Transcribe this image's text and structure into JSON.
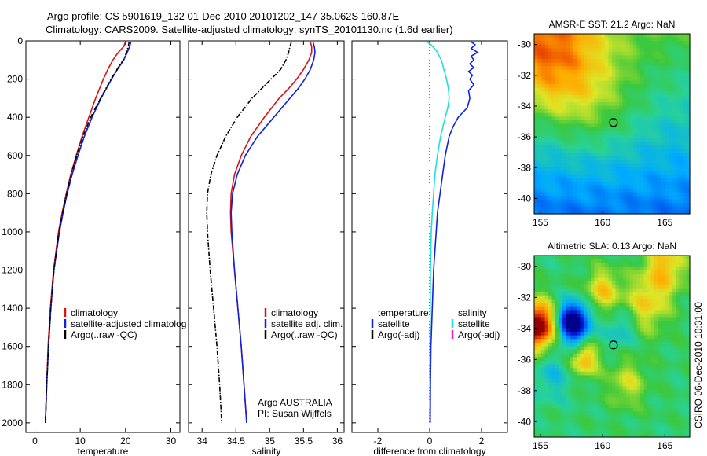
{
  "title": {
    "line1": "Argo profile: CS 5901619_132 01-Dec-2010 20101202_147 35.062S 160.87E",
    "line2": "Climatology: CARS2009. Satellite-adjusted climatology: synTS_20101130.nc (1.6d earlier)"
  },
  "side_label": "CSIRO 06-Dec-2010 10:31:00",
  "colors": {
    "climatology": "#dd1111",
    "satellite": "#1122dd",
    "argo": "#000000",
    "salinity_satellite": "#22dddd",
    "salinity_argo": "#dd22dd"
  },
  "chart_data": [
    {
      "id": "temperature",
      "type": "line",
      "xlabel": "temperature",
      "ylabel": "",
      "xlim": [
        -2,
        32
      ],
      "ylim": [
        2050,
        0
      ],
      "xticks": [
        0,
        10,
        20,
        30
      ],
      "yticks": [
        0,
        200,
        400,
        600,
        800,
        1000,
        1200,
        1400,
        1600,
        1800,
        2000
      ],
      "ytick_labels": [
        "0",
        "200",
        "400",
        "600",
        "800",
        "1000",
        "1200",
        "1400",
        "1600",
        "1800",
        "2000"
      ],
      "legend": [
        "climatology",
        "satellite-adjusted climatolog",
        "Argo(..raw -QC)"
      ],
      "legend_position": "lower-right",
      "series": [
        {
          "name": "climatology",
          "color": "#dd1111",
          "style": "solid",
          "depth": [
            5,
            30,
            60,
            100,
            150,
            200,
            300,
            400,
            500,
            600,
            700,
            800,
            900,
            1000,
            1200,
            1400,
            1600,
            1800,
            2000
          ],
          "values": [
            20.0,
            19.6,
            18.4,
            17.2,
            16.1,
            15.1,
            13.4,
            11.9,
            10.4,
            9.1,
            7.9,
            6.9,
            6.0,
            5.2,
            4.1,
            3.4,
            2.9,
            2.6,
            2.3
          ]
        },
        {
          "name": "satellite-adjusted climatolog",
          "color": "#1122dd",
          "style": "solid",
          "depth": [
            5,
            30,
            60,
            100,
            150,
            200,
            300,
            400,
            500,
            600,
            700,
            800,
            900,
            1000,
            1200,
            1400,
            1600,
            1800,
            2000
          ],
          "values": [
            21.2,
            20.9,
            20.4,
            19.6,
            18.2,
            16.9,
            14.6,
            12.6,
            10.9,
            9.5,
            8.2,
            7.1,
            6.2,
            5.4,
            4.2,
            3.5,
            3.0,
            2.6,
            2.3
          ]
        },
        {
          "name": "Argo(..raw -QC)",
          "color": "#000000",
          "style": "dashdot",
          "depth": [
            5,
            30,
            60,
            100,
            150,
            200,
            300,
            400,
            500,
            600,
            700,
            800,
            900,
            1000,
            1200,
            1400,
            1600,
            1800,
            2000
          ],
          "values": [
            20.8,
            20.6,
            20.2,
            19.5,
            18.1,
            16.8,
            14.5,
            12.3,
            10.6,
            9.2,
            8.0,
            7.0,
            6.1,
            5.3,
            4.2,
            3.5,
            3.0,
            2.6,
            2.3
          ]
        }
      ]
    },
    {
      "id": "salinity",
      "type": "line",
      "xlabel": "salinity",
      "ylabel": "",
      "xlim": [
        33.8,
        36.1
      ],
      "ylim": [
        2050,
        0
      ],
      "xticks": [
        34,
        34.5,
        35,
        35.5,
        36
      ],
      "yticks": [
        0,
        200,
        400,
        600,
        800,
        1000,
        1200,
        1400,
        1600,
        1800,
        2000
      ],
      "legend": [
        "climatology",
        "satellite adj. clim.",
        "Argo(..raw -QC)"
      ],
      "legend_position": "lower-right",
      "annotation": [
        "Argo AUSTRALIA",
        "PI: Susan Wijffels"
      ],
      "series": [
        {
          "name": "climatology",
          "color": "#dd1111",
          "style": "solid",
          "depth": [
            5,
            30,
            60,
            100,
            150,
            200,
            250,
            300,
            400,
            500,
            600,
            700,
            800,
            900,
            1000,
            1200,
            1400,
            1600,
            1800,
            2000
          ],
          "values": [
            35.6,
            35.62,
            35.62,
            35.58,
            35.5,
            35.4,
            35.28,
            35.14,
            34.92,
            34.72,
            34.58,
            34.48,
            34.43,
            34.42,
            34.43,
            34.48,
            34.53,
            34.58,
            34.62,
            34.66
          ]
        },
        {
          "name": "satellite adj. clim.",
          "color": "#1122dd",
          "style": "solid",
          "depth": [
            5,
            30,
            60,
            100,
            150,
            200,
            250,
            300,
            400,
            500,
            600,
            700,
            800,
            900,
            1000,
            1200,
            1400,
            1600,
            1800,
            2000
          ],
          "values": [
            35.64,
            35.66,
            35.67,
            35.65,
            35.6,
            35.52,
            35.42,
            35.3,
            35.06,
            34.82,
            34.64,
            34.52,
            34.45,
            34.43,
            34.44,
            34.48,
            34.53,
            34.58,
            34.62,
            34.66
          ]
        },
        {
          "name": "Argo(..raw -QC)",
          "color": "#000000",
          "style": "dashdot",
          "depth": [
            5,
            30,
            60,
            100,
            150,
            200,
            250,
            300,
            400,
            500,
            600,
            700,
            800,
            900,
            1000,
            1200,
            1400,
            1600,
            1800,
            2000
          ],
          "values": [
            35.32,
            35.3,
            35.28,
            35.24,
            35.16,
            35.02,
            34.88,
            34.74,
            34.52,
            34.35,
            34.22,
            34.13,
            34.08,
            34.07,
            34.08,
            34.12,
            34.17,
            34.22,
            34.26,
            34.29
          ]
        }
      ]
    },
    {
      "id": "difference",
      "type": "line",
      "xlabel": "difference from climatology",
      "ylabel": "",
      "xlim": [
        -3,
        3
      ],
      "ylim": [
        2050,
        0
      ],
      "xticks": [
        -2,
        0,
        2
      ],
      "yticks": [
        0,
        200,
        400,
        600,
        800,
        1000,
        1200,
        1400,
        1600,
        1800,
        2000
      ],
      "legend_left_header": "temperature",
      "legend_left": [
        "satellite",
        "Argo(-adj)"
      ],
      "legend_right_header": "salinity",
      "legend_right": [
        "satellite",
        "Argo(-adj)"
      ],
      "legend_position": "lower-center",
      "series": [
        {
          "name": "temperature satellite",
          "color": "#1122dd",
          "style": "solid",
          "depth": [
            5,
            20,
            40,
            60,
            80,
            100,
            120,
            140,
            160,
            180,
            200,
            230,
            260,
            300,
            350,
            400,
            450,
            500,
            600,
            700,
            800,
            900,
            1000,
            1200,
            1400,
            1600,
            1800,
            2000
          ],
          "values": [
            1.6,
            1.75,
            1.6,
            1.85,
            1.6,
            1.7,
            1.55,
            1.7,
            1.5,
            1.65,
            1.55,
            1.7,
            1.5,
            1.55,
            1.45,
            1.1,
            0.9,
            0.75,
            0.6,
            0.5,
            0.4,
            0.3,
            0.25,
            0.15,
            0.1,
            0.05,
            0.03,
            0.02
          ]
        },
        {
          "name": "salinity satellite",
          "color": "#22dddd",
          "style": "solid",
          "depth": [
            5,
            20,
            50,
            100,
            150,
            200,
            250,
            300,
            350,
            400,
            500,
            600,
            700,
            800,
            900,
            1000,
            1200,
            1400,
            1600,
            1800,
            2000
          ],
          "values": [
            -0.1,
            0.05,
            0.25,
            0.45,
            0.55,
            0.65,
            0.72,
            0.75,
            0.7,
            0.6,
            0.42,
            0.3,
            0.2,
            0.15,
            0.1,
            0.06,
            0.03,
            0.02,
            0.01,
            0.01,
            0.0
          ]
        },
        {
          "name": "zero reference",
          "color": "#000000",
          "style": "dotted",
          "depth": [
            0,
            2050
          ],
          "values": [
            0,
            0
          ]
        }
      ]
    },
    {
      "id": "amsr-sst",
      "type": "heatmap",
      "title": "AMSR-E SST: 21.2 Argo: NaN",
      "xlim": [
        154.5,
        167
      ],
      "ylim": [
        -41,
        -29.3
      ],
      "xticks": [
        155,
        160,
        165
      ],
      "yticks": [
        -30,
        -32,
        -34,
        -36,
        -38,
        -40
      ],
      "marker": {
        "lon": 160.87,
        "lat": -35.062
      },
      "colormap": "jet",
      "field_range": [
        15,
        24
      ],
      "field_blobs": [
        {
          "lon": 155.0,
          "lat": -30.5,
          "r": 2.8,
          "amp": 2.2
        },
        {
          "lon": 157.5,
          "lat": -31.5,
          "r": 3.5,
          "amp": 1.2
        },
        {
          "lon": 160.5,
          "lat": -34.5,
          "r": 2.5,
          "amp": 0.6
        },
        {
          "lon": 158.0,
          "lat": -33.5,
          "r": 2.0,
          "amp": 0.5
        }
      ]
    },
    {
      "id": "altimetric-sla",
      "type": "heatmap",
      "title": "Altimetric SLA: 0.13 Argo: NaN",
      "xlim": [
        154.5,
        167
      ],
      "ylim": [
        -41,
        -29.3
      ],
      "xticks": [
        155,
        160,
        165
      ],
      "yticks": [
        -30,
        -32,
        -34,
        -36,
        -38,
        -40
      ],
      "marker": {
        "lon": 160.87,
        "lat": -35.062
      },
      "colormap": "jet",
      "field_range": [
        -0.6,
        0.6
      ],
      "field_blobs": [
        {
          "lon": 154.8,
          "lat": -33.8,
          "r": 1.1,
          "amp": 0.7
        },
        {
          "lon": 157.6,
          "lat": -33.6,
          "r": 0.9,
          "amp": -0.75
        },
        {
          "lon": 158.5,
          "lat": -36.0,
          "r": 0.8,
          "amp": 0.35
        },
        {
          "lon": 160.0,
          "lat": -31.5,
          "r": 1.0,
          "amp": 0.28
        },
        {
          "lon": 163.5,
          "lat": -32.5,
          "r": 1.3,
          "amp": 0.25
        },
        {
          "lon": 165.0,
          "lat": -30.0,
          "r": 1.2,
          "amp": 0.3
        },
        {
          "lon": 162.0,
          "lat": -37.5,
          "r": 1.1,
          "amp": 0.2
        },
        {
          "lon": 156.0,
          "lat": -37.0,
          "r": 1.2,
          "amp": -0.15
        },
        {
          "lon": 161.5,
          "lat": -34.0,
          "r": 0.9,
          "amp": -0.18
        }
      ]
    }
  ]
}
